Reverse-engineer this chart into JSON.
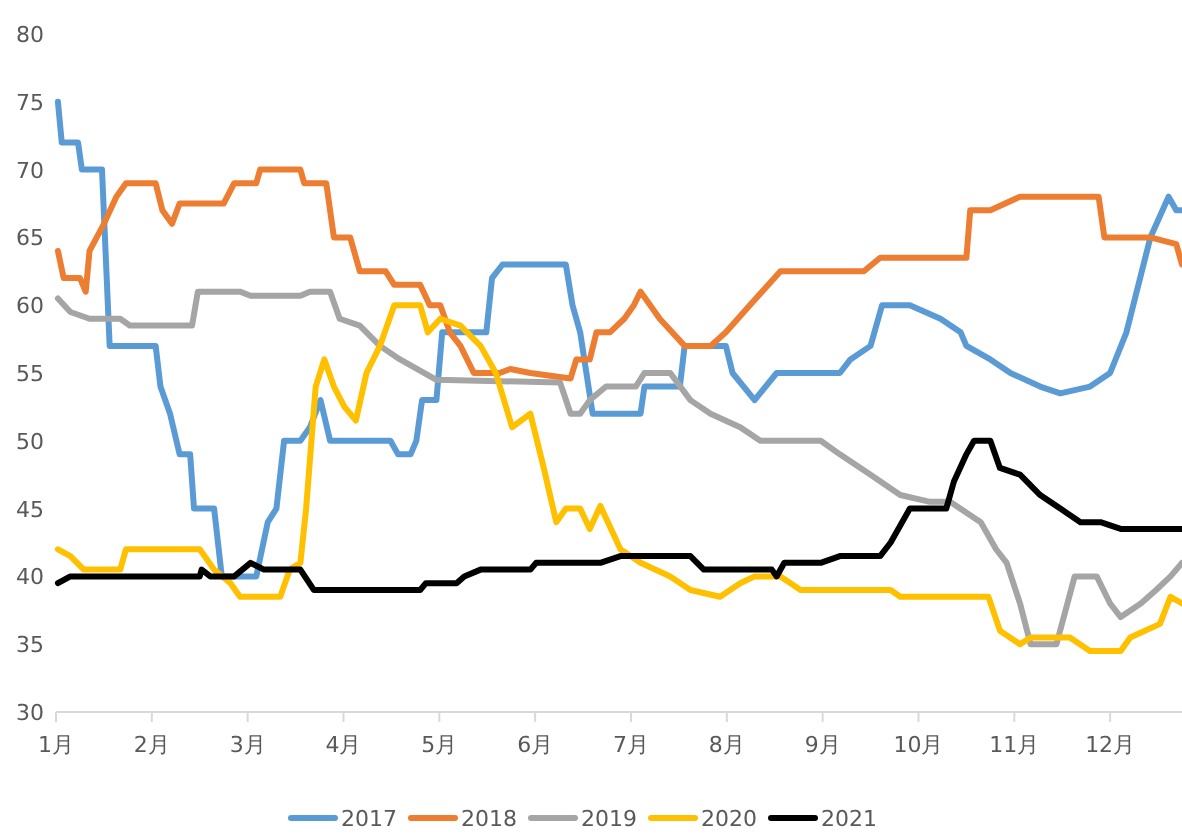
{
  "chart_data": {
    "type": "line",
    "xlim": [
      1,
      12.75
    ],
    "ylim": [
      30,
      80
    ],
    "yticks": [
      30,
      35,
      40,
      45,
      50,
      55,
      60,
      65,
      70,
      75,
      80
    ],
    "xticks": [
      {
        "value": 1,
        "label": "1月"
      },
      {
        "value": 2,
        "label": "2月"
      },
      {
        "value": 3,
        "label": "3月"
      },
      {
        "value": 4,
        "label": "4月"
      },
      {
        "value": 5,
        "label": "5月"
      },
      {
        "value": 6,
        "label": "6月"
      },
      {
        "value": 7,
        "label": "7月"
      },
      {
        "value": 8,
        "label": "8月"
      },
      {
        "value": 9,
        "label": "9月"
      },
      {
        "value": 10,
        "label": "10月"
      },
      {
        "value": 11,
        "label": "11月"
      },
      {
        "value": 12,
        "label": "12月"
      }
    ],
    "legend": "bottom",
    "series": [
      {
        "name": "2017",
        "color": "#5b9bd5",
        "x": [
          1.02,
          1.06,
          1.23,
          1.27,
          1.48,
          1.56,
          2.04,
          2.09,
          2.19,
          2.29,
          2.4,
          2.44,
          2.65,
          2.73,
          3.09,
          3.21,
          3.3,
          3.38,
          3.55,
          3.65,
          3.76,
          3.86,
          4.49,
          4.57,
          4.7,
          4.76,
          4.82,
          4.97,
          5.03,
          5.49,
          5.55,
          5.66,
          6.32,
          6.39,
          6.47,
          6.6,
          7.1,
          7.14,
          7.51,
          7.56,
          7.99,
          8.06,
          8.29,
          8.52,
          9.18,
          9.29,
          9.5,
          9.62,
          9.91,
          10.23,
          10.44,
          10.5,
          10.75,
          10.96,
          11.27,
          11.48,
          11.79,
          12.0,
          12.17,
          12.42,
          12.61,
          12.69,
          12.75
        ],
        "values": [
          75,
          72,
          72,
          70,
          70,
          57,
          57,
          54,
          52,
          49,
          49,
          45,
          45,
          40,
          40,
          44,
          45,
          50,
          50,
          51,
          53,
          50,
          50,
          49,
          49,
          50,
          53,
          53,
          58,
          58,
          62,
          63,
          63,
          60,
          58,
          52,
          52,
          54,
          54,
          57,
          57,
          55,
          53,
          55,
          55,
          56,
          57,
          60,
          60,
          59,
          58,
          57,
          56,
          55,
          54,
          53.5,
          54,
          55,
          58,
          65,
          68,
          67,
          67
        ]
      },
      {
        "name": "2018",
        "color": "#ed7d31",
        "x": [
          1.02,
          1.08,
          1.25,
          1.31,
          1.35,
          1.5,
          1.63,
          1.73,
          2.04,
          2.11,
          2.21,
          2.29,
          2.75,
          2.86,
          3.09,
          3.13,
          3.55,
          3.59,
          3.82,
          3.9,
          4.07,
          4.17,
          4.44,
          4.53,
          4.8,
          4.9,
          5.01,
          5.11,
          5.22,
          5.36,
          5.63,
          5.74,
          5.95,
          6.37,
          6.43,
          6.57,
          6.64,
          6.78,
          6.93,
          7.03,
          7.1,
          7.3,
          7.56,
          7.83,
          7.99,
          8.24,
          8.56,
          9.43,
          9.6,
          10.5,
          10.54,
          10.75,
          11.06,
          11.88,
          11.94,
          12.42,
          12.69,
          12.75
        ],
        "values": [
          64,
          62,
          62,
          61,
          64,
          66,
          68,
          69,
          69,
          67,
          66,
          67.5,
          67.5,
          69,
          69,
          70,
          70,
          69,
          69,
          65,
          65,
          62.5,
          62.5,
          61.5,
          61.5,
          60,
          60,
          58,
          57,
          55,
          55,
          55.3,
          55,
          54.6,
          56,
          56,
          58,
          58,
          59,
          60,
          61,
          59,
          57,
          57,
          58,
          60,
          62.5,
          62.5,
          63.5,
          63.5,
          67,
          67,
          68,
          68,
          65,
          65,
          64.5,
          63
        ]
      },
      {
        "name": "2019",
        "color": "#a5a5a5",
        "x": [
          1.02,
          1.15,
          1.35,
          1.67,
          1.77,
          2.42,
          2.48,
          2.92,
          3.03,
          3.55,
          3.65,
          3.86,
          3.96,
          4.17,
          4.38,
          4.59,
          4.97,
          6.26,
          6.37,
          6.47,
          6.57,
          6.74,
          7.05,
          7.14,
          7.41,
          7.62,
          7.83,
          8.14,
          8.35,
          8.98,
          9.18,
          9.5,
          9.81,
          10.12,
          10.33,
          10.65,
          10.81,
          10.92,
          11.06,
          11.17,
          11.44,
          11.63,
          11.86,
          12.0,
          12.11,
          12.32,
          12.48,
          12.63,
          12.75
        ],
        "values": [
          60.5,
          59.5,
          59,
          59,
          58.5,
          58.5,
          61,
          61,
          60.7,
          60.7,
          61,
          61,
          59,
          58.5,
          57,
          56,
          54.5,
          54.3,
          52,
          52,
          53,
          54,
          54,
          55,
          55,
          53,
          52,
          51,
          50,
          50,
          49,
          47.5,
          46,
          45.5,
          45.5,
          44,
          42,
          41,
          38,
          35,
          35,
          40,
          40,
          38,
          37,
          38,
          39,
          40,
          41
        ]
      },
      {
        "name": "2020",
        "color": "#ffc000",
        "x": [
          1.02,
          1.15,
          1.29,
          1.67,
          1.73,
          2.5,
          2.65,
          2.82,
          2.92,
          3.34,
          3.44,
          3.55,
          3.61,
          3.71,
          3.8,
          3.9,
          4.01,
          4.13,
          4.24,
          4.38,
          4.53,
          4.8,
          4.88,
          5.01,
          5.22,
          5.43,
          5.59,
          5.76,
          5.95,
          6.09,
          6.22,
          6.32,
          6.47,
          6.57,
          6.68,
          6.89,
          7.1,
          7.41,
          7.62,
          7.93,
          8.14,
          8.29,
          8.56,
          8.77,
          9.71,
          9.81,
          10.73,
          10.85,
          11.06,
          11.17,
          11.58,
          11.79,
          12.11,
          12.21,
          12.52,
          12.63,
          12.75
        ],
        "values": [
          42,
          41.5,
          40.5,
          40.5,
          42,
          42,
          40.5,
          39.5,
          38.5,
          38.5,
          40.5,
          41,
          45,
          54,
          56,
          54,
          52.5,
          51.5,
          55,
          57,
          60,
          60,
          58,
          59,
          58.5,
          57,
          55,
          51,
          52,
          48,
          44,
          45,
          45,
          43.5,
          45.2,
          42,
          41,
          40,
          39,
          38.5,
          39.5,
          40,
          40,
          39,
          39,
          38.5,
          38.5,
          36,
          35,
          35.5,
          35.5,
          34.5,
          34.5,
          35.5,
          36.5,
          38.5,
          38
        ]
      },
      {
        "name": "2021",
        "color": "#000000",
        "x": [
          1.02,
          1.15,
          2.5,
          2.52,
          2.61,
          2.86,
          3.03,
          3.17,
          3.55,
          3.69,
          4.8,
          4.86,
          5.18,
          5.26,
          5.43,
          5.95,
          6.01,
          6.68,
          6.89,
          7.62,
          7.76,
          8.47,
          8.52,
          8.6,
          8.98,
          9.18,
          9.6,
          9.71,
          9.91,
          10.29,
          10.37,
          10.5,
          10.58,
          10.75,
          10.85,
          11.06,
          11.27,
          11.48,
          11.69,
          11.9,
          12.11,
          12.75
        ],
        "values": [
          39.5,
          40,
          40,
          40.5,
          40,
          40,
          41,
          40.5,
          40.5,
          39,
          39,
          39.5,
          39.5,
          40,
          40.5,
          40.5,
          41,
          41,
          41.5,
          41.5,
          40.5,
          40.5,
          40,
          41,
          41,
          41.5,
          41.5,
          42.5,
          45,
          45,
          47,
          49,
          50,
          50,
          48,
          47.5,
          46,
          45,
          44,
          44,
          43.5,
          43.5
        ]
      }
    ]
  }
}
